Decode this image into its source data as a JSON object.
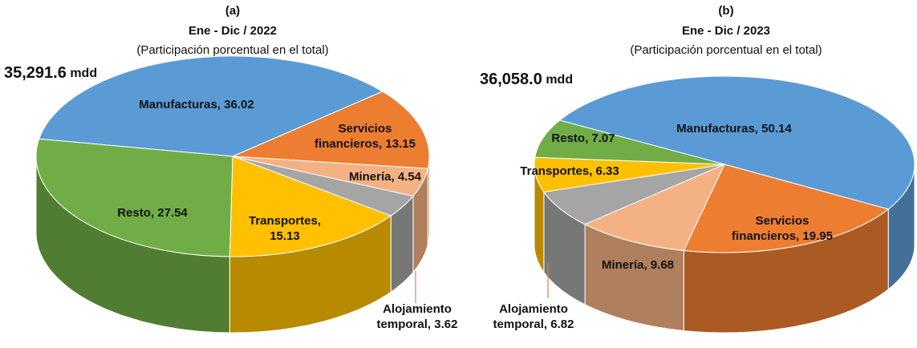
{
  "chart_data": [
    {
      "type": "pie3d",
      "title": "(a)",
      "period": "Ene - Dic / 2022",
      "subtitle": "(Participación porcentual en el total)",
      "total": {
        "value": 35291.6,
        "label": "35,291.6"
      },
      "total_unit": "mdd",
      "categories": [
        "Manufacturas,",
        "Servicios financieros,",
        "Minería,",
        "Alojamiento temporal,",
        "Transportes,",
        "Resto,"
      ],
      "values": [
        36.02,
        13.15,
        4.54,
        3.62,
        15.13,
        27.54
      ],
      "colors": [
        "#5b9bd5",
        "#ed7d31",
        "#f4b183",
        "#a5a5a5",
        "#ffc000",
        "#70ad47"
      ]
    },
    {
      "type": "pie3d",
      "title": "(b)",
      "period": "Ene - Dic / 2023",
      "subtitle": "(Participación porcentual en el total)",
      "total": {
        "value": 36058.0,
        "label": "36,058.0"
      },
      "total_unit": "mdd",
      "categories": [
        "Manufacturas,",
        "Servicios financieros,",
        "Minería,",
        "Alojamiento temporal,",
        "Transportes,",
        "Resto,"
      ],
      "values": [
        50.14,
        19.95,
        9.68,
        6.82,
        6.33,
        7.07
      ],
      "colors": [
        "#5b9bd5",
        "#ed7d31",
        "#f4b183",
        "#a5a5a5",
        "#ffc000",
        "#70ad47"
      ]
    }
  ]
}
